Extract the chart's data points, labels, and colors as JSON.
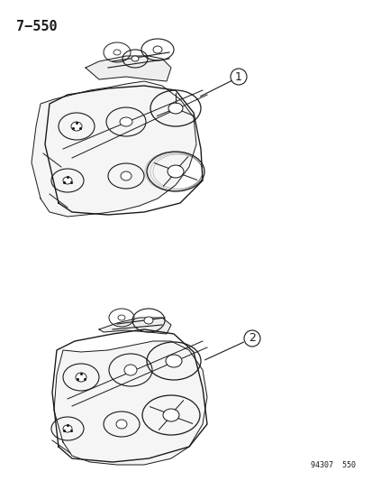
{
  "title": "7−550",
  "footnote": "94307  550",
  "label1": "1",
  "label2": "2",
  "bg_color": "#ffffff",
  "line_color": "#1a1a1a",
  "figsize": [
    4.14,
    5.33
  ],
  "dpi": 100
}
